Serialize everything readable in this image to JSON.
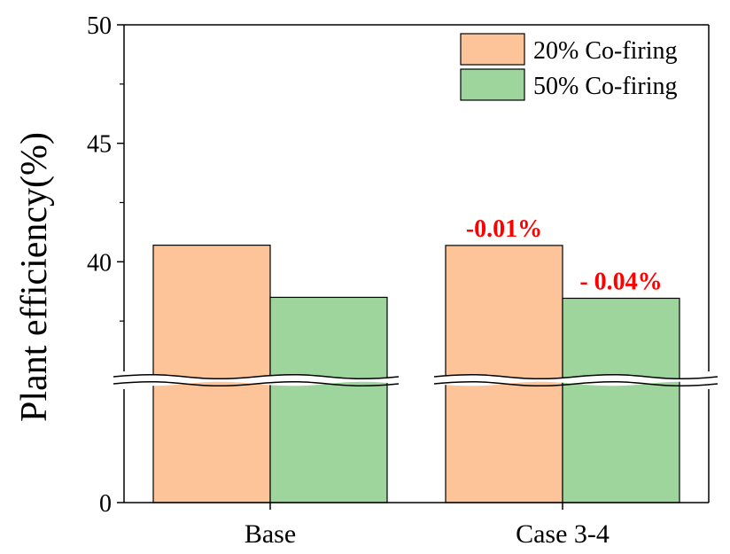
{
  "chart_data": {
    "type": "bar",
    "categories": [
      "Base",
      "Case 3-4"
    ],
    "series": [
      {
        "name": "20% Co-firing",
        "values": [
          40.7,
          40.69
        ],
        "color": "#FDC49A"
      },
      {
        "name": "50% Co-firing",
        "values": [
          38.5,
          38.46
        ],
        "color": "#9DD59C"
      }
    ],
    "ylabel": "Plant efficiency(%)",
    "xlabel": "",
    "yticks": [
      0,
      40,
      45,
      50
    ],
    "ylim": [
      0,
      50
    ],
    "axis_break": [
      35,
      35
    ],
    "annotations": [
      {
        "text": "-0.01%",
        "category": "Case 3-4",
        "series": "20% Co-firing",
        "color": "#FF0000"
      },
      {
        "text": "- 0.04%",
        "category": "Case 3-4",
        "series": "50% Co-firing",
        "color": "#FF0000"
      }
    ],
    "legend_position": "top-right",
    "grid": false
  }
}
